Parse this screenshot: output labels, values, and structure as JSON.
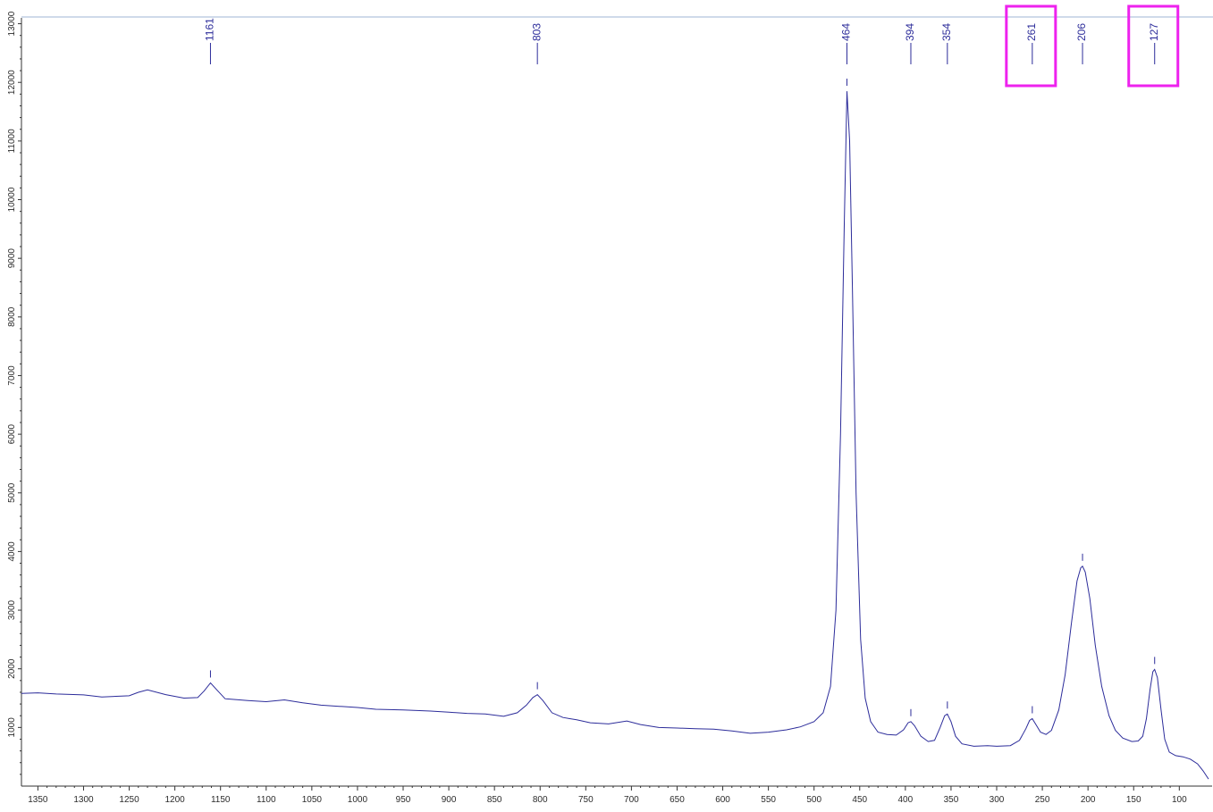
{
  "chart_data": {
    "type": "line",
    "title": "",
    "xlabel": "",
    "ylabel": "",
    "xlim": [
      1368,
      68
    ],
    "ylim": [
      0,
      13100
    ],
    "x_ticks": [
      1350,
      1300,
      1250,
      1200,
      1150,
      1100,
      1050,
      1000,
      950,
      900,
      850,
      800,
      750,
      700,
      650,
      600,
      550,
      500,
      450,
      400,
      350,
      300,
      250,
      200,
      150,
      100
    ],
    "y_ticks": [
      1000,
      2000,
      3000,
      4000,
      5000,
      6000,
      7000,
      8000,
      9000,
      10000,
      11000,
      12000,
      13000
    ],
    "grid": false,
    "series": [
      {
        "color": "#2c2c9a",
        "points": [
          [
            1368,
            1580
          ],
          [
            1350,
            1590
          ],
          [
            1330,
            1570
          ],
          [
            1300,
            1555
          ],
          [
            1280,
            1520
          ],
          [
            1250,
            1540
          ],
          [
            1240,
            1600
          ],
          [
            1230,
            1640
          ],
          [
            1210,
            1560
          ],
          [
            1190,
            1500
          ],
          [
            1175,
            1510
          ],
          [
            1168,
            1620
          ],
          [
            1161,
            1760
          ],
          [
            1154,
            1640
          ],
          [
            1145,
            1490
          ],
          [
            1120,
            1460
          ],
          [
            1100,
            1440
          ],
          [
            1080,
            1470
          ],
          [
            1060,
            1420
          ],
          [
            1040,
            1380
          ],
          [
            1020,
            1360
          ],
          [
            1000,
            1340
          ],
          [
            980,
            1310
          ],
          [
            950,
            1300
          ],
          [
            920,
            1280
          ],
          [
            900,
            1260
          ],
          [
            880,
            1240
          ],
          [
            860,
            1230
          ],
          [
            840,
            1190
          ],
          [
            825,
            1250
          ],
          [
            815,
            1380
          ],
          [
            808,
            1510
          ],
          [
            803,
            1560
          ],
          [
            797,
            1460
          ],
          [
            787,
            1250
          ],
          [
            775,
            1170
          ],
          [
            760,
            1130
          ],
          [
            745,
            1080
          ],
          [
            725,
            1060
          ],
          [
            705,
            1110
          ],
          [
            690,
            1050
          ],
          [
            670,
            1000
          ],
          [
            650,
            990
          ],
          [
            630,
            980
          ],
          [
            610,
            970
          ],
          [
            590,
            940
          ],
          [
            570,
            900
          ],
          [
            550,
            920
          ],
          [
            530,
            960
          ],
          [
            515,
            1010
          ],
          [
            500,
            1100
          ],
          [
            490,
            1250
          ],
          [
            482,
            1700
          ],
          [
            476,
            3000
          ],
          [
            471,
            6000
          ],
          [
            467,
            9500
          ],
          [
            464,
            11850
          ],
          [
            461,
            11000
          ],
          [
            458,
            8500
          ],
          [
            454,
            5000
          ],
          [
            449,
            2500
          ],
          [
            444,
            1500
          ],
          [
            438,
            1100
          ],
          [
            430,
            920
          ],
          [
            420,
            880
          ],
          [
            410,
            870
          ],
          [
            402,
            960
          ],
          [
            397,
            1080
          ],
          [
            394,
            1100
          ],
          [
            390,
            1030
          ],
          [
            383,
            850
          ],
          [
            375,
            760
          ],
          [
            368,
            780
          ],
          [
            362,
            1000
          ],
          [
            357,
            1200
          ],
          [
            354,
            1230
          ],
          [
            350,
            1100
          ],
          [
            345,
            850
          ],
          [
            338,
            720
          ],
          [
            325,
            680
          ],
          [
            310,
            690
          ],
          [
            300,
            680
          ],
          [
            285,
            690
          ],
          [
            275,
            780
          ],
          [
            268,
            980
          ],
          [
            264,
            1120
          ],
          [
            261,
            1150
          ],
          [
            257,
            1050
          ],
          [
            252,
            920
          ],
          [
            246,
            880
          ],
          [
            240,
            950
          ],
          [
            232,
            1300
          ],
          [
            225,
            1900
          ],
          [
            218,
            2800
          ],
          [
            212,
            3500
          ],
          [
            208,
            3720
          ],
          [
            206,
            3750
          ],
          [
            203,
            3650
          ],
          [
            198,
            3200
          ],
          [
            192,
            2400
          ],
          [
            185,
            1700
          ],
          [
            177,
            1200
          ],
          [
            170,
            950
          ],
          [
            162,
            820
          ],
          [
            152,
            760
          ],
          [
            145,
            770
          ],
          [
            140,
            850
          ],
          [
            136,
            1150
          ],
          [
            132,
            1650
          ],
          [
            129,
            1950
          ],
          [
            127,
            1990
          ],
          [
            124,
            1850
          ],
          [
            120,
            1300
          ],
          [
            116,
            800
          ],
          [
            111,
            580
          ],
          [
            104,
            520
          ],
          [
            96,
            500
          ],
          [
            88,
            460
          ],
          [
            80,
            380
          ],
          [
            74,
            260
          ],
          [
            68,
            120
          ]
        ]
      }
    ],
    "peak_labels": [
      "1161",
      "803",
      "464",
      "394",
      "354",
      "261",
      "206",
      "127"
    ],
    "peaks": [
      1161,
      803,
      464,
      394,
      354,
      261,
      206,
      127
    ],
    "highlighted_peaks": [
      261,
      127
    ],
    "highlight_color": "#ee22ee"
  }
}
